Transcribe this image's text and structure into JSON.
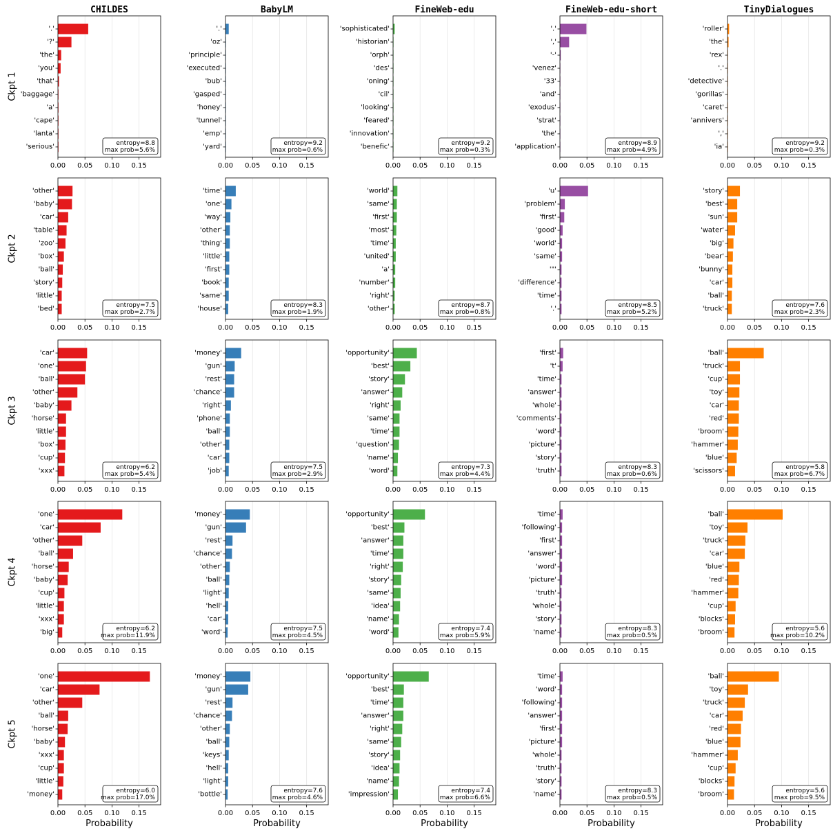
{
  "colors": {
    "CHILDES": "#e41a1c",
    "BabyLM": "#377eb8",
    "FineWeb-edu": "#4daf4a",
    "FineWeb-edu-short": "#984ea3",
    "TinyDialogues": "#ff7f00"
  },
  "chart_data": {
    "type": "bar",
    "orientation": "horizontal",
    "columns": [
      "CHILDES",
      "BabyLM",
      "FineWeb-edu",
      "FineWeb-edu-short",
      "TinyDialogues"
    ],
    "rows": [
      "Ckpt 1",
      "Ckpt 2",
      "Ckpt 3",
      "Ckpt 4",
      "Ckpt 5"
    ],
    "xlabel": "Probability",
    "xlim": [
      0,
      0.19
    ],
    "xticks": [
      "0.00",
      "0.05",
      "0.10",
      "0.15"
    ],
    "grid": "vertical",
    "panels": [
      [
        {
          "labels": [
            "'.'",
            "'?'",
            "'the'",
            "'you'",
            "'that'",
            "'baggage'",
            "'a'",
            "'cape'",
            "'lanta'",
            "'serious'"
          ],
          "values": [
            0.056,
            0.025,
            0.006,
            0.005,
            0.002,
            0.001,
            0.001,
            0.001,
            0.001,
            0.001
          ],
          "annotation": [
            "entropy=8.8",
            "max prob=5.6%"
          ]
        },
        {
          "labels": [
            "'.'",
            "'oz'",
            "'principle'",
            "'executed'",
            "'bub'",
            "'gasped'",
            "'honey'",
            "'tunnel'",
            "'emp'",
            "'yard'"
          ],
          "values": [
            0.006,
            0.0008,
            0.0007,
            0.0007,
            0.0006,
            0.0006,
            0.0006,
            0.0006,
            0.0006,
            0.0006
          ],
          "annotation": [
            "entropy=9.2",
            "max prob=0.6%"
          ]
        },
        {
          "labels": [
            "'sophisticated'",
            "'historian'",
            "'orph'",
            "'des'",
            "'oning'",
            "'cil'",
            "'looking'",
            "'feared'",
            "'innovation'",
            "'benefic'"
          ],
          "values": [
            0.003,
            0.0008,
            0.0006,
            0.0006,
            0.0005,
            0.0005,
            0.0005,
            0.0005,
            0.0005,
            0.0005
          ],
          "annotation": [
            "entropy=9.2",
            "max prob=0.3%"
          ]
        },
        {
          "labels": [
            "'.'",
            "','",
            "'-'",
            "'venez'",
            "'33'",
            "'and'",
            "'exodus'",
            "'strat'",
            "'the'",
            "'application'"
          ],
          "values": [
            0.049,
            0.017,
            0.0015,
            0.0008,
            0.0008,
            0.0007,
            0.0007,
            0.0007,
            0.0007,
            0.0007
          ],
          "annotation": [
            "entropy=8.9",
            "max prob=4.9%"
          ]
        },
        {
          "labels": [
            "'roller'",
            "'the'",
            "'rex'",
            "'.'",
            "'detective'",
            "'gorillas'",
            "'caret'",
            "'annivers'",
            "','",
            "'ia'"
          ],
          "values": [
            0.003,
            0.002,
            0.0008,
            0.0007,
            0.0007,
            0.0007,
            0.0006,
            0.0006,
            0.0006,
            0.0006
          ],
          "annotation": [
            "entropy=9.2",
            "max prob=0.3%"
          ]
        }
      ],
      [
        {
          "labels": [
            "'other'",
            "'baby'",
            "'car'",
            "'table'",
            "'zoo'",
            "'box'",
            "'ball'",
            "'story'",
            "'little'",
            "'bed'"
          ],
          "values": [
            0.027,
            0.026,
            0.019,
            0.016,
            0.014,
            0.011,
            0.009,
            0.008,
            0.007,
            0.007
          ],
          "annotation": [
            "entropy=7.5",
            "max prob=2.7%"
          ]
        },
        {
          "labels": [
            "'time'",
            "'one'",
            "'way'",
            "'other'",
            "'thing'",
            "'little'",
            "'first'",
            "'book'",
            "'same'",
            "'house'"
          ],
          "values": [
            0.019,
            0.011,
            0.009,
            0.008,
            0.008,
            0.007,
            0.007,
            0.006,
            0.006,
            0.005
          ],
          "annotation": [
            "entropy=8.3",
            "max prob=1.9%"
          ]
        },
        {
          "labels": [
            "'world'",
            "'same'",
            "'first'",
            "'most'",
            "'time'",
            "'united'",
            "'a'",
            "'number'",
            "'right'",
            "'other'"
          ],
          "values": [
            0.008,
            0.007,
            0.007,
            0.006,
            0.005,
            0.005,
            0.004,
            0.004,
            0.003,
            0.003
          ],
          "annotation": [
            "entropy=8.7",
            "max prob=0.8%"
          ]
        },
        {
          "labels": [
            "'u'",
            "'problem'",
            "'first'",
            "'good'",
            "'world'",
            "'same'",
            "'\"'",
            "'difference'",
            "'time'",
            "'.'"
          ],
          "values": [
            0.052,
            0.009,
            0.008,
            0.005,
            0.004,
            0.004,
            0.003,
            0.003,
            0.003,
            0.003
          ],
          "annotation": [
            "entropy=8.5",
            "max prob=5.2%"
          ]
        },
        {
          "labels": [
            "'story'",
            "'best'",
            "'sun'",
            "'water'",
            "'big'",
            "'bear'",
            "'bunny'",
            "'car'",
            "'ball'",
            "'truck'"
          ],
          "values": [
            0.023,
            0.018,
            0.018,
            0.014,
            0.011,
            0.01,
            0.009,
            0.009,
            0.008,
            0.008
          ],
          "annotation": [
            "entropy=7.6",
            "max prob=2.3%"
          ]
        }
      ],
      [
        {
          "labels": [
            "'car'",
            "'one'",
            "'ball'",
            "'other'",
            "'baby'",
            "'horse'",
            "'little'",
            "'box'",
            "'cup'",
            "'xxx'"
          ],
          "values": [
            0.054,
            0.052,
            0.05,
            0.036,
            0.025,
            0.015,
            0.015,
            0.014,
            0.013,
            0.012
          ],
          "annotation": [
            "entropy=6.2",
            "max prob=5.4%"
          ]
        },
        {
          "labels": [
            "'money'",
            "'gun'",
            "'rest'",
            "'chance'",
            "'right'",
            "'phone'",
            "'ball'",
            "'other'",
            "'car'",
            "'job'"
          ],
          "values": [
            0.029,
            0.017,
            0.016,
            0.016,
            0.01,
            0.008,
            0.008,
            0.007,
            0.007,
            0.006
          ],
          "annotation": [
            "entropy=7.5",
            "max prob=2.9%"
          ]
        },
        {
          "labels": [
            "'opportunity'",
            "'best'",
            "'story'",
            "'answer'",
            "'right'",
            "'same'",
            "'time'",
            "'question'",
            "'name'",
            "'word'"
          ],
          "values": [
            0.044,
            0.032,
            0.022,
            0.017,
            0.014,
            0.012,
            0.012,
            0.011,
            0.009,
            0.008
          ],
          "annotation": [
            "entropy=7.3",
            "max prob=4.4%"
          ]
        },
        {
          "labels": [
            "'first'",
            "'t'",
            "'time'",
            "'answer'",
            "'whole'",
            "'comments'",
            "'word'",
            "'picture'",
            "'story'",
            "'truth'"
          ],
          "values": [
            0.006,
            0.005,
            0.003,
            0.003,
            0.003,
            0.003,
            0.003,
            0.003,
            0.003,
            0.003
          ],
          "annotation": [
            "entropy=8.3",
            "max prob=0.6%"
          ]
        },
        {
          "labels": [
            "'ball'",
            "'truck'",
            "'cup'",
            "'toy'",
            "'car'",
            "'red'",
            "'broom'",
            "'hammer'",
            "'blue'",
            "'scissors'"
          ],
          "values": [
            0.067,
            0.023,
            0.023,
            0.022,
            0.021,
            0.021,
            0.02,
            0.019,
            0.017,
            0.014
          ],
          "annotation": [
            "entropy=5.8",
            "max prob=6.7%"
          ]
        }
      ],
      [
        {
          "labels": [
            "'one'",
            "'car'",
            "'other'",
            "'ball'",
            "'horse'",
            "'baby'",
            "'cup'",
            "'little'",
            "'xxx'",
            "'big'"
          ],
          "values": [
            0.119,
            0.079,
            0.045,
            0.028,
            0.02,
            0.018,
            0.012,
            0.011,
            0.011,
            0.008
          ],
          "annotation": [
            "entropy=6.2",
            "max prob=11.9%"
          ]
        },
        {
          "labels": [
            "'money'",
            "'gun'",
            "'rest'",
            "'chance'",
            "'other'",
            "'ball'",
            "'light'",
            "'hell'",
            "'car'",
            "'word'"
          ],
          "values": [
            0.045,
            0.038,
            0.013,
            0.012,
            0.008,
            0.007,
            0.006,
            0.005,
            0.005,
            0.004
          ],
          "annotation": [
            "entropy=7.5",
            "max prob=4.5%"
          ]
        },
        {
          "labels": [
            "'opportunity'",
            "'best'",
            "'answer'",
            "'time'",
            "'right'",
            "'story'",
            "'same'",
            "'idea'",
            "'name'",
            "'word'"
          ],
          "values": [
            0.059,
            0.021,
            0.019,
            0.019,
            0.018,
            0.015,
            0.014,
            0.013,
            0.011,
            0.01
          ],
          "annotation": [
            "entropy=7.4",
            "max prob=5.9%"
          ]
        },
        {
          "labels": [
            "'time'",
            "'following'",
            "'first'",
            "'answer'",
            "'word'",
            "'picture'",
            "'truth'",
            "'whole'",
            "'story'",
            "'name'"
          ],
          "values": [
            0.005,
            0.004,
            0.004,
            0.004,
            0.004,
            0.004,
            0.003,
            0.003,
            0.003,
            0.003
          ],
          "annotation": [
            "entropy=8.3",
            "max prob=0.5%"
          ]
        },
        {
          "labels": [
            "'ball'",
            "'toy'",
            "'truck'",
            "'car'",
            "'blue'",
            "'red'",
            "'hammer'",
            "'cup'",
            "'blocks'",
            "'broom'"
          ],
          "values": [
            0.102,
            0.037,
            0.033,
            0.032,
            0.022,
            0.021,
            0.02,
            0.015,
            0.014,
            0.013
          ],
          "annotation": [
            "entropy=5.6",
            "max prob=10.2%"
          ]
        }
      ],
      [
        {
          "labels": [
            "'one'",
            "'car'",
            "'other'",
            "'ball'",
            "'horse'",
            "'baby'",
            "'xxx'",
            "'cup'",
            "'little'",
            "'money'"
          ],
          "values": [
            0.17,
            0.077,
            0.045,
            0.019,
            0.018,
            0.013,
            0.011,
            0.011,
            0.01,
            0.008
          ],
          "annotation": [
            "entropy=6.0",
            "max prob=17.0%"
          ]
        },
        {
          "labels": [
            "'money'",
            "'gun'",
            "'rest'",
            "'chance'",
            "'other'",
            "'ball'",
            "'keys'",
            "'hell'",
            "'light'",
            "'bottle'"
          ],
          "values": [
            0.046,
            0.042,
            0.013,
            0.012,
            0.008,
            0.007,
            0.006,
            0.005,
            0.005,
            0.004
          ],
          "annotation": [
            "entropy=7.6",
            "max prob=4.6%"
          ]
        },
        {
          "labels": [
            "'opportunity'",
            "'best'",
            "'time'",
            "'answer'",
            "'right'",
            "'same'",
            "'story'",
            "'idea'",
            "'name'",
            "'impression'"
          ],
          "values": [
            0.066,
            0.02,
            0.019,
            0.019,
            0.017,
            0.015,
            0.013,
            0.012,
            0.011,
            0.009
          ],
          "annotation": [
            "entropy=7.4",
            "max prob=6.6%"
          ]
        },
        {
          "labels": [
            "'time'",
            "'word'",
            "'following'",
            "'answer'",
            "'first'",
            "'picture'",
            "'whole'",
            "'truth'",
            "'story'",
            "'name'"
          ],
          "values": [
            0.005,
            0.004,
            0.004,
            0.004,
            0.004,
            0.004,
            0.003,
            0.003,
            0.003,
            0.003
          ],
          "annotation": [
            "entropy=8.3",
            "max prob=0.5%"
          ]
        },
        {
          "labels": [
            "'ball'",
            "'toy'",
            "'truck'",
            "'car'",
            "'red'",
            "'blue'",
            "'hammer'",
            "'cup'",
            "'blocks'",
            "'broom'"
          ],
          "values": [
            0.095,
            0.038,
            0.032,
            0.028,
            0.025,
            0.024,
            0.019,
            0.015,
            0.013,
            0.012
          ],
          "annotation": [
            "entropy=5.6",
            "max prob=9.5%"
          ]
        }
      ]
    ]
  }
}
